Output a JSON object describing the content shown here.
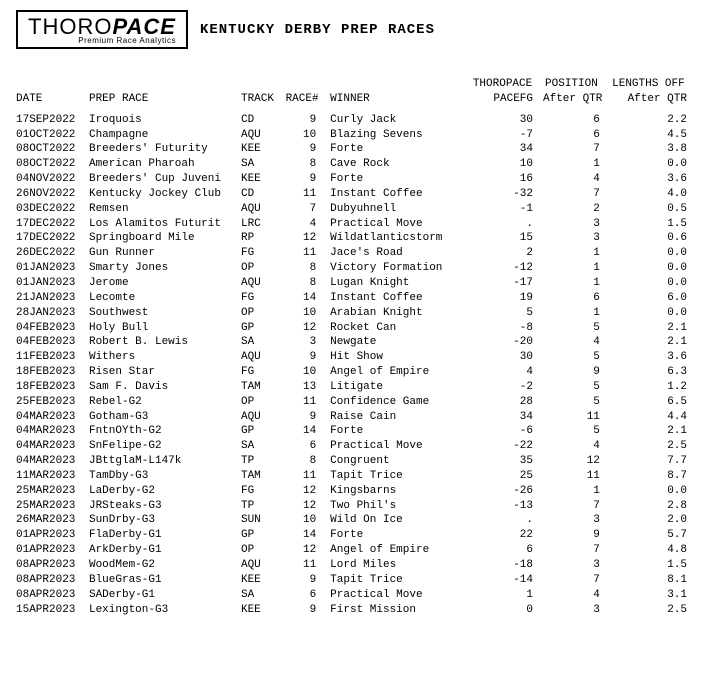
{
  "logo": {
    "part1": "THORO",
    "part2": "PACE",
    "tagline": "Premium Race Analytics"
  },
  "title": "KENTUCKY DERBY PREP RACES",
  "headers": {
    "top": {
      "pacefg": "THOROPACE",
      "pos": "POSITION",
      "len": "LENGTHS OFF"
    },
    "bottom": {
      "date": "DATE",
      "prep": "PREP RACE",
      "track": "TRACK",
      "race": "RACE#",
      "winner": "WINNER",
      "pacefg": "PACEFG",
      "pos": "After QTR",
      "len": "After QTR"
    }
  },
  "rows": [
    {
      "date": "17SEP2022",
      "prep": "Iroquois",
      "track": "CD",
      "race": "9",
      "winner": "Curly Jack",
      "pacefg": "30",
      "pos": "6",
      "len": "2.2"
    },
    {
      "date": "01OCT2022",
      "prep": "Champagne",
      "track": "AQU",
      "race": "10",
      "winner": "Blazing Sevens",
      "pacefg": "-7",
      "pos": "6",
      "len": "4.5"
    },
    {
      "date": "08OCT2022",
      "prep": "Breeders' Futurity",
      "track": "KEE",
      "race": "9",
      "winner": "Forte",
      "pacefg": "34",
      "pos": "7",
      "len": "3.8"
    },
    {
      "date": "08OCT2022",
      "prep": "American Pharoah",
      "track": "SA",
      "race": "8",
      "winner": "Cave Rock",
      "pacefg": "10",
      "pos": "1",
      "len": "0.0"
    },
    {
      "date": "04NOV2022",
      "prep": "Breeders' Cup Juveni",
      "track": "KEE",
      "race": "9",
      "winner": "Forte",
      "pacefg": "16",
      "pos": "4",
      "len": "3.6"
    },
    {
      "date": "26NOV2022",
      "prep": "Kentucky Jockey Club",
      "track": "CD",
      "race": "11",
      "winner": "Instant Coffee",
      "pacefg": "-32",
      "pos": "7",
      "len": "4.0"
    },
    {
      "date": "03DEC2022",
      "prep": "Remsen",
      "track": "AQU",
      "race": "7",
      "winner": "Dubyuhnell",
      "pacefg": "-1",
      "pos": "2",
      "len": "0.5"
    },
    {
      "date": "17DEC2022",
      "prep": "Los Alamitos Futurit",
      "track": "LRC",
      "race": "4",
      "winner": "Practical Move",
      "pacefg": ".",
      "pos": "3",
      "len": "1.5"
    },
    {
      "date": "17DEC2022",
      "prep": "Springboard Mile",
      "track": "RP",
      "race": "12",
      "winner": "Wildatlanticstorm",
      "pacefg": "15",
      "pos": "3",
      "len": "0.6"
    },
    {
      "date": "26DEC2022",
      "prep": "Gun Runner",
      "track": "FG",
      "race": "11",
      "winner": "Jace's Road",
      "pacefg": "2",
      "pos": "1",
      "len": "0.0"
    },
    {
      "date": "01JAN2023",
      "prep": "Smarty Jones",
      "track": "OP",
      "race": "8",
      "winner": "Victory Formation",
      "pacefg": "-12",
      "pos": "1",
      "len": "0.0"
    },
    {
      "date": "01JAN2023",
      "prep": "Jerome",
      "track": "AQU",
      "race": "8",
      "winner": "Lugan Knight",
      "pacefg": "-17",
      "pos": "1",
      "len": "0.0"
    },
    {
      "date": "21JAN2023",
      "prep": "Lecomte",
      "track": "FG",
      "race": "14",
      "winner": "Instant Coffee",
      "pacefg": "19",
      "pos": "6",
      "len": "6.0"
    },
    {
      "date": "28JAN2023",
      "prep": "Southwest",
      "track": "OP",
      "race": "10",
      "winner": "Arabian Knight",
      "pacefg": "5",
      "pos": "1",
      "len": "0.0"
    },
    {
      "date": "04FEB2023",
      "prep": "Holy Bull",
      "track": "GP",
      "race": "12",
      "winner": "Rocket Can",
      "pacefg": "-8",
      "pos": "5",
      "len": "2.1"
    },
    {
      "date": "04FEB2023",
      "prep": "Robert B. Lewis",
      "track": "SA",
      "race": "3",
      "winner": "Newgate",
      "pacefg": "-20",
      "pos": "4",
      "len": "2.1"
    },
    {
      "date": "11FEB2023",
      "prep": "Withers",
      "track": "AQU",
      "race": "9",
      "winner": "Hit Show",
      "pacefg": "30",
      "pos": "5",
      "len": "3.6"
    },
    {
      "date": "18FEB2023",
      "prep": "Risen Star",
      "track": "FG",
      "race": "10",
      "winner": "Angel of Empire",
      "pacefg": "4",
      "pos": "9",
      "len": "6.3"
    },
    {
      "date": "18FEB2023",
      "prep": "Sam F. Davis",
      "track": "TAM",
      "race": "13",
      "winner": "Litigate",
      "pacefg": "-2",
      "pos": "5",
      "len": "1.2"
    },
    {
      "date": "25FEB2023",
      "prep": "Rebel-G2",
      "track": "OP",
      "race": "11",
      "winner": "Confidence Game",
      "pacefg": "28",
      "pos": "5",
      "len": "6.5"
    },
    {
      "date": "04MAR2023",
      "prep": "Gotham-G3",
      "track": "AQU",
      "race": "9",
      "winner": "Raise Cain",
      "pacefg": "34",
      "pos": "11",
      "len": "4.4"
    },
    {
      "date": "04MAR2023",
      "prep": "FntnOYth-G2",
      "track": "GP",
      "race": "14",
      "winner": "Forte",
      "pacefg": "-6",
      "pos": "5",
      "len": "2.1"
    },
    {
      "date": "04MAR2023",
      "prep": "SnFelipe-G2",
      "track": "SA",
      "race": "6",
      "winner": "Practical Move",
      "pacefg": "-22",
      "pos": "4",
      "len": "2.5"
    },
    {
      "date": "04MAR2023",
      "prep": "JBttglaM-L147k",
      "track": "TP",
      "race": "8",
      "winner": "Congruent",
      "pacefg": "35",
      "pos": "12",
      "len": "7.7"
    },
    {
      "date": "11MAR2023",
      "prep": "TamDby-G3",
      "track": "TAM",
      "race": "11",
      "winner": "Tapit Trice",
      "pacefg": "25",
      "pos": "11",
      "len": "8.7"
    },
    {
      "date": "25MAR2023",
      "prep": "LaDerby-G2",
      "track": "FG",
      "race": "12",
      "winner": "Kingsbarns",
      "pacefg": "-26",
      "pos": "1",
      "len": "0.0"
    },
    {
      "date": "25MAR2023",
      "prep": "JRSteaks-G3",
      "track": "TP",
      "race": "12",
      "winner": "Two Phil's",
      "pacefg": "-13",
      "pos": "7",
      "len": "2.8"
    },
    {
      "date": "26MAR2023",
      "prep": "SunDrby-G3",
      "track": "SUN",
      "race": "10",
      "winner": "Wild On Ice",
      "pacefg": ".",
      "pos": "3",
      "len": "2.0"
    },
    {
      "date": "01APR2023",
      "prep": "FlaDerby-G1",
      "track": "GP",
      "race": "14",
      "winner": "Forte",
      "pacefg": "22",
      "pos": "9",
      "len": "5.7"
    },
    {
      "date": "01APR2023",
      "prep": "ArkDerby-G1",
      "track": "OP",
      "race": "12",
      "winner": "Angel of Empire",
      "pacefg": "6",
      "pos": "7",
      "len": "4.8"
    },
    {
      "date": "08APR2023",
      "prep": "WoodMem-G2",
      "track": "AQU",
      "race": "11",
      "winner": "Lord Miles",
      "pacefg": "-18",
      "pos": "3",
      "len": "1.5"
    },
    {
      "date": "08APR2023",
      "prep": "BlueGras-G1",
      "track": "KEE",
      "race": "9",
      "winner": "Tapit Trice",
      "pacefg": "-14",
      "pos": "7",
      "len": "8.1"
    },
    {
      "date": "08APR2023",
      "prep": "SADerby-G1",
      "track": "SA",
      "race": "6",
      "winner": "Practical Move",
      "pacefg": "1",
      "pos": "4",
      "len": "3.1"
    },
    {
      "date": "15APR2023",
      "prep": "Lexington-G3",
      "track": "KEE",
      "race": "9",
      "winner": "First Mission",
      "pacefg": "0",
      "pos": "3",
      "len": "2.5"
    }
  ]
}
